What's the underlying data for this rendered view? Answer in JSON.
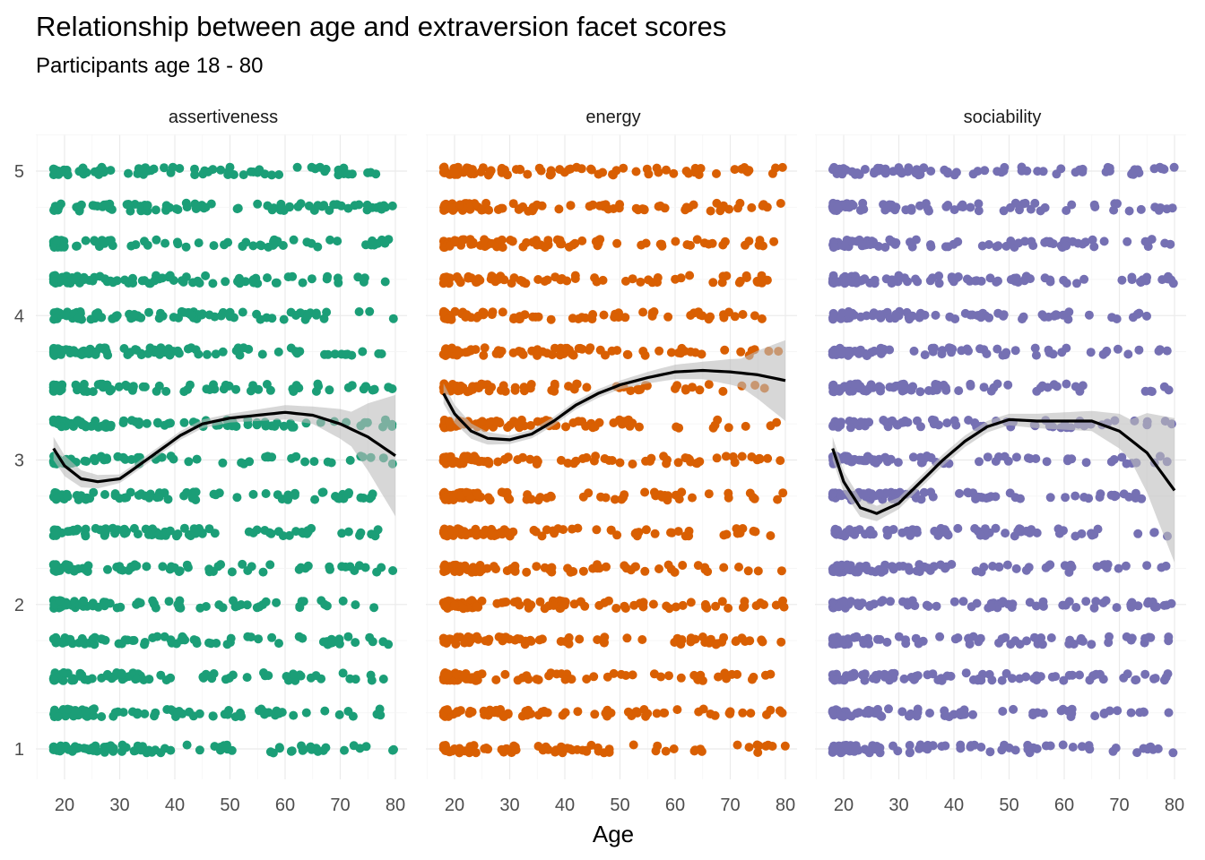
{
  "chart_data": {
    "type": "scatter",
    "title": "Relationship between age and extraversion facet scores",
    "subtitle": "Participants age 18 - 80",
    "xlabel": "Age",
    "ylabel": "",
    "xlim": [
      15,
      82
    ],
    "ylim": [
      0.8,
      5.22
    ],
    "x_ticks": [
      20,
      30,
      40,
      50,
      60,
      70,
      80
    ],
    "y_ticks": [
      1,
      2,
      3,
      4,
      5
    ],
    "grid": true,
    "legend": "none",
    "smoother_color": "#000000",
    "ribbon_color": "#bdbdbd",
    "facets": [
      {
        "name": "assertiveness",
        "color": "#1b9e77",
        "max_age": 80,
        "smooth": [
          [
            18,
            3.08
          ],
          [
            20,
            2.96
          ],
          [
            23,
            2.87
          ],
          [
            26,
            2.85
          ],
          [
            30,
            2.87
          ],
          [
            33,
            2.95
          ],
          [
            37,
            3.06
          ],
          [
            41,
            3.17
          ],
          [
            45,
            3.25
          ],
          [
            50,
            3.29
          ],
          [
            55,
            3.31
          ],
          [
            60,
            3.33
          ],
          [
            65,
            3.31
          ],
          [
            70,
            3.25
          ],
          [
            75,
            3.16
          ],
          [
            80,
            3.03
          ]
        ],
        "ribbon_half": [
          [
            18,
            0.08
          ],
          [
            30,
            0.03
          ],
          [
            50,
            0.03
          ],
          [
            65,
            0.06
          ],
          [
            72,
            0.12
          ],
          [
            80,
            0.42
          ]
        ]
      },
      {
        "name": "energy",
        "color": "#d95f02",
        "max_age": 80,
        "smooth": [
          [
            18,
            3.46
          ],
          [
            20,
            3.32
          ],
          [
            23,
            3.2
          ],
          [
            26,
            3.15
          ],
          [
            30,
            3.14
          ],
          [
            34,
            3.18
          ],
          [
            38,
            3.27
          ],
          [
            42,
            3.38
          ],
          [
            46,
            3.46
          ],
          [
            50,
            3.52
          ],
          [
            55,
            3.57
          ],
          [
            60,
            3.61
          ],
          [
            65,
            3.62
          ],
          [
            70,
            3.61
          ],
          [
            75,
            3.59
          ],
          [
            80,
            3.55
          ]
        ],
        "ribbon_half": [
          [
            18,
            0.07
          ],
          [
            30,
            0.03
          ],
          [
            50,
            0.03
          ],
          [
            65,
            0.06
          ],
          [
            72,
            0.1
          ],
          [
            80,
            0.28
          ]
        ]
      },
      {
        "name": "sociability",
        "color": "#7570b3",
        "max_age": 80,
        "smooth": [
          [
            18,
            3.08
          ],
          [
            20,
            2.85
          ],
          [
            23,
            2.67
          ],
          [
            26,
            2.63
          ],
          [
            30,
            2.7
          ],
          [
            34,
            2.85
          ],
          [
            38,
            3.0
          ],
          [
            42,
            3.13
          ],
          [
            46,
            3.23
          ],
          [
            50,
            3.28
          ],
          [
            55,
            3.27
          ],
          [
            60,
            3.27
          ],
          [
            65,
            3.27
          ],
          [
            70,
            3.2
          ],
          [
            75,
            3.05
          ],
          [
            80,
            2.79
          ]
        ],
        "ribbon_half": [
          [
            18,
            0.08
          ],
          [
            30,
            0.04
          ],
          [
            50,
            0.04
          ],
          [
            65,
            0.07
          ],
          [
            72,
            0.14
          ],
          [
            80,
            0.5
          ]
        ]
      }
    ]
  }
}
